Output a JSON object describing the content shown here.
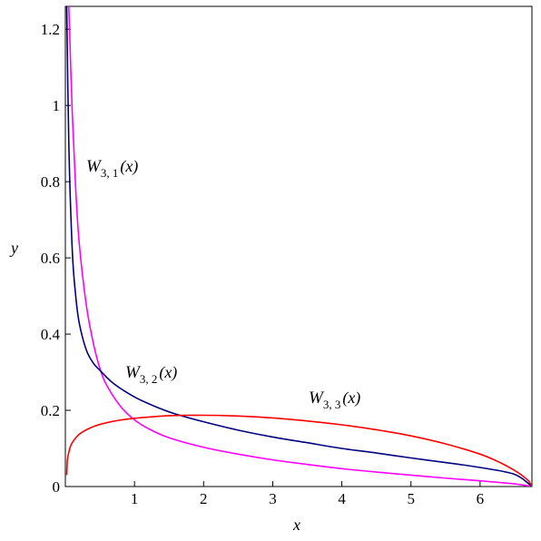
{
  "chart_data": {
    "type": "line",
    "xlabel": "x",
    "ylabel": "y",
    "xlim": [
      0,
      6.75
    ],
    "ylim": [
      0,
      1.26
    ],
    "grid": false,
    "x_ticks": [
      1,
      2,
      3,
      4,
      5,
      6
    ],
    "y_ticks": [
      0,
      0.2,
      0.4,
      0.6,
      0.8,
      1,
      1.2
    ],
    "x_tick_labels": [
      "1",
      "2",
      "3",
      "4",
      "5",
      "6"
    ],
    "y_tick_labels": [
      "0",
      "0.2",
      "0.4",
      "0.6",
      "0.8",
      "1",
      "1.2"
    ],
    "series": [
      {
        "name": "W3,1(x)",
        "label_main": "W",
        "label_sub": "3, 1",
        "label_arg": "(x)",
        "color": "#ff00ff",
        "x": [
          0.05,
          0.1,
          0.15,
          0.2,
          0.3,
          0.4,
          0.5,
          0.6,
          0.8,
          1.0,
          1.2,
          1.5,
          2.0,
          2.5,
          3.0,
          3.5,
          4.0,
          4.5,
          5.0,
          5.5,
          6.0,
          6.5,
          6.75
        ],
        "y": [
          1.26,
          0.98,
          0.78,
          0.64,
          0.48,
          0.38,
          0.31,
          0.265,
          0.21,
          0.175,
          0.152,
          0.128,
          0.103,
          0.085,
          0.07,
          0.058,
          0.047,
          0.038,
          0.03,
          0.022,
          0.015,
          0.007,
          0.0
        ]
      },
      {
        "name": "W3,2(x)",
        "label_main": "W",
        "label_sub": "3, 2",
        "label_arg": "(x)",
        "color": "#000080",
        "x": [
          0.02,
          0.05,
          0.1,
          0.15,
          0.2,
          0.3,
          0.4,
          0.5,
          0.7,
          1.0,
          1.3,
          1.6,
          2.0,
          2.5,
          3.0,
          3.5,
          4.0,
          4.5,
          5.0,
          5.5,
          6.0,
          6.5,
          6.75
        ],
        "y": [
          1.26,
          0.9,
          0.62,
          0.5,
          0.43,
          0.36,
          0.325,
          0.305,
          0.27,
          0.235,
          0.21,
          0.19,
          0.17,
          0.148,
          0.13,
          0.115,
          0.1,
          0.088,
          0.075,
          0.063,
          0.05,
          0.032,
          0.0
        ]
      },
      {
        "name": "W3,3(x)",
        "label_main": "W",
        "label_sub": "3, 3",
        "label_arg": "(x)",
        "color": "#ff0000",
        "x": [
          0.02,
          0.03,
          0.06,
          0.1,
          0.2,
          0.35,
          0.5,
          0.75,
          1.0,
          1.25,
          1.5,
          2.0,
          2.5,
          3.0,
          3.5,
          4.0,
          4.5,
          5.0,
          5.5,
          6.0,
          6.3,
          6.5,
          6.6,
          6.7,
          6.75
        ],
        "y": [
          0.03,
          0.07,
          0.097,
          0.115,
          0.137,
          0.153,
          0.163,
          0.173,
          0.179,
          0.183,
          0.186,
          0.187,
          0.185,
          0.18,
          0.172,
          0.162,
          0.149,
          0.133,
          0.112,
          0.085,
          0.062,
          0.042,
          0.03,
          0.015,
          0.0
        ]
      }
    ]
  }
}
